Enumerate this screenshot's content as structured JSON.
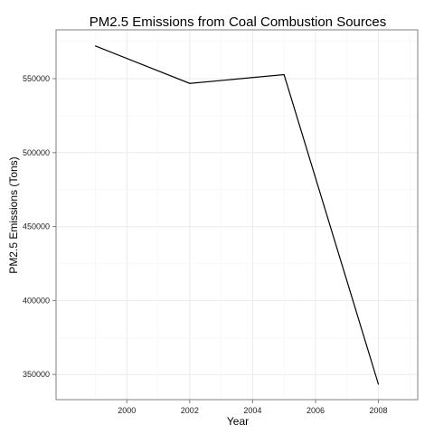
{
  "chart_data": {
    "type": "line",
    "title": "PM2.5 Emissions from Coal Combustion Sources",
    "xlabel": "Year",
    "ylabel": "PM2.5 Emissions (Tons)",
    "x": [
      1999,
      2002,
      2005,
      2008
    ],
    "series": [
      {
        "values": [
          572100,
          546800,
          552700,
          343400
        ]
      }
    ],
    "xlim": [
      1997.75,
      2009.25
    ],
    "ylim": [
      333000,
      583000
    ],
    "x_ticks": [
      2000,
      2002,
      2004,
      2006,
      2008
    ],
    "y_ticks": [
      350000,
      400000,
      450000,
      500000,
      550000
    ],
    "x_tick_labels": [
      "2000",
      "2002",
      "2004",
      "2006",
      "2008"
    ],
    "y_tick_labels": [
      "350000",
      "400000",
      "450000",
      "500000",
      "550000"
    ],
    "grid": true,
    "legend": "none",
    "colors": {
      "line": "#000000",
      "panel_border": "#7f7f7f",
      "grid_major": "#ebebeb",
      "grid_minor": "#f5f5f5"
    }
  }
}
